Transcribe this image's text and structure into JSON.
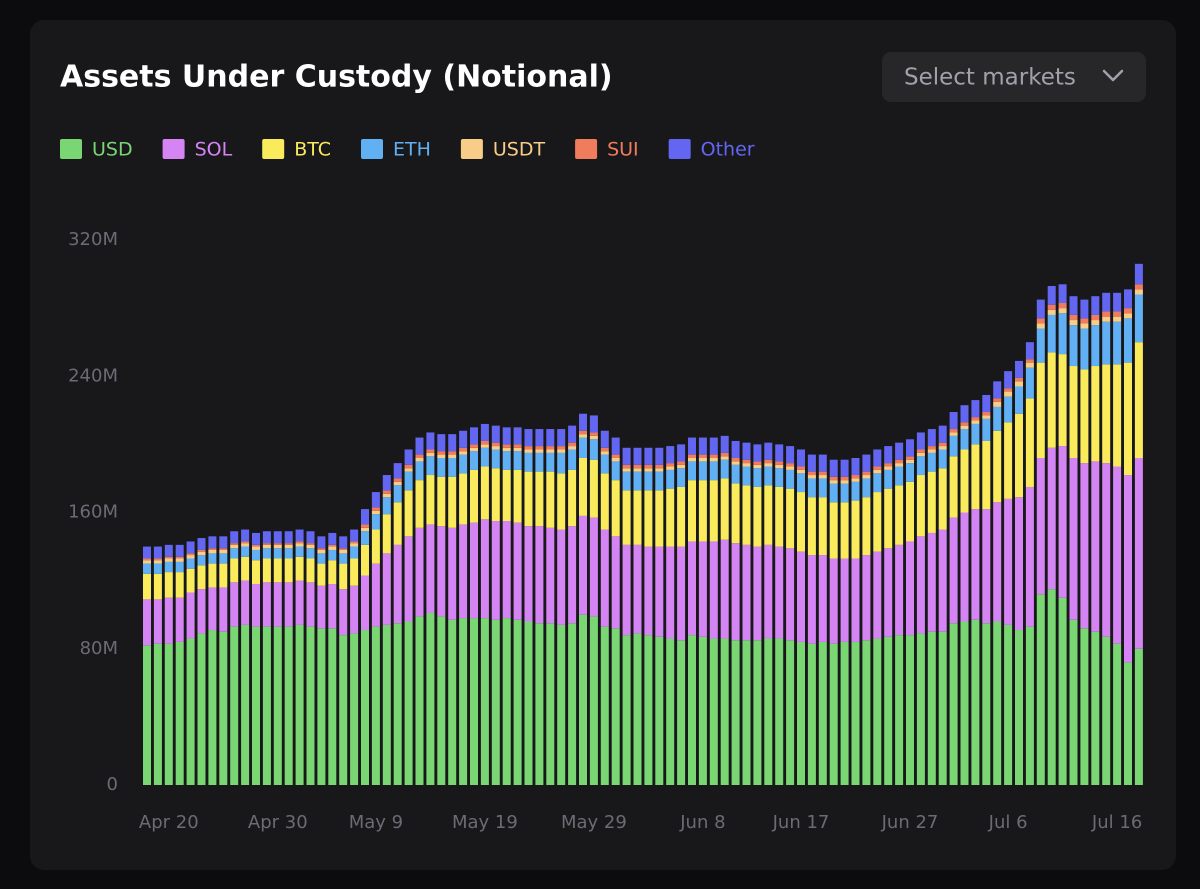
{
  "controls": {
    "select": "Select markets"
  },
  "chart_data": {
    "type": "stacked_bar",
    "title": "Assets Under Custody (Notional)",
    "categories": [
      null,
      null,
      "Apr 20",
      null,
      null,
      null,
      null,
      null,
      null,
      null,
      null,
      null,
      "Apr 30",
      null,
      null,
      null,
      null,
      null,
      null,
      null,
      null,
      "May 9",
      null,
      null,
      null,
      null,
      null,
      null,
      null,
      null,
      null,
      "May 19",
      null,
      null,
      null,
      null,
      null,
      null,
      null,
      null,
      null,
      "May 29",
      null,
      null,
      null,
      null,
      null,
      null,
      null,
      null,
      null,
      "Jun 8",
      null,
      null,
      null,
      null,
      null,
      null,
      null,
      null,
      "Jun 17",
      null,
      null,
      null,
      null,
      null,
      null,
      null,
      null,
      null,
      "Jun 27",
      null,
      null,
      null,
      null,
      null,
      null,
      null,
      null,
      "Jul 6",
      null,
      null,
      null,
      null,
      null,
      null,
      null,
      null,
      null,
      "Jul 16",
      null,
      null
    ],
    "ylim": [
      0,
      320
    ],
    "yticks": [
      {
        "value": 0,
        "label": "0"
      },
      {
        "value": 80,
        "label": "80M"
      },
      {
        "value": 160,
        "label": "160M"
      },
      {
        "value": 240,
        "label": "240M"
      },
      {
        "value": 320,
        "label": "320M"
      }
    ],
    "grid": false,
    "series": [
      {
        "name": "USD",
        "color": "#79d673",
        "values": [
          82,
          83,
          83,
          84,
          86,
          89,
          91,
          90,
          93,
          94,
          93,
          93,
          93,
          93,
          94,
          93,
          92,
          92,
          88,
          89,
          91,
          93,
          94,
          95,
          96,
          99,
          101,
          99,
          97,
          98,
          98,
          98,
          97,
          98,
          97,
          96,
          95,
          95,
          94,
          95,
          100,
          99,
          93,
          92,
          88,
          89,
          88,
          87,
          86,
          85,
          88,
          87,
          86,
          86,
          85,
          85,
          85,
          86,
          86,
          85,
          84,
          83,
          84,
          83,
          84,
          84,
          85,
          86,
          87,
          88,
          88,
          89,
          90,
          90,
          95,
          96,
          97,
          95,
          96,
          94,
          91,
          93,
          112,
          115,
          110,
          97,
          92,
          90,
          87,
          83,
          72,
          80
        ]
      },
      {
        "name": "SOL",
        "color": "#d584f4",
        "values": [
          27,
          26,
          27,
          26,
          27,
          26,
          25,
          26,
          26,
          26,
          25,
          26,
          26,
          26,
          26,
          26,
          25,
          26,
          27,
          28,
          32,
          37,
          42,
          46,
          50,
          52,
          52,
          53,
          54,
          55,
          56,
          58,
          58,
          57,
          57,
          56,
          57,
          56,
          56,
          57,
          58,
          58,
          57,
          54,
          53,
          52,
          52,
          53,
          54,
          55,
          55,
          56,
          57,
          58,
          57,
          56,
          55,
          55,
          54,
          54,
          53,
          52,
          51,
          50,
          49,
          49,
          50,
          51,
          52,
          53,
          55,
          57,
          58,
          60,
          62,
          64,
          65,
          67,
          70,
          74,
          78,
          82,
          80,
          83,
          89,
          95,
          97,
          100,
          102,
          104,
          110,
          112
        ]
      },
      {
        "name": "BTC",
        "color": "#faeb5c",
        "values": [
          15,
          15,
          15,
          15,
          14,
          14,
          14,
          14,
          14,
          14,
          14,
          14,
          14,
          14,
          14,
          14,
          13,
          14,
          15,
          16,
          18,
          20,
          23,
          25,
          27,
          28,
          29,
          29,
          30,
          30,
          31,
          31,
          31,
          30,
          31,
          32,
          32,
          33,
          33,
          33,
          34,
          34,
          33,
          33,
          32,
          32,
          33,
          33,
          34,
          35,
          36,
          36,
          36,
          36,
          35,
          35,
          35,
          35,
          35,
          35,
          35,
          34,
          34,
          33,
          33,
          34,
          34,
          35,
          35,
          35,
          35,
          36,
          36,
          36,
          36,
          37,
          38,
          40,
          42,
          45,
          49,
          52,
          56,
          56,
          54,
          54,
          55,
          56,
          58,
          60,
          66,
          68
        ]
      },
      {
        "name": "ETH",
        "color": "#62b0f4",
        "values": [
          6,
          6,
          6,
          6,
          6,
          6,
          6,
          6,
          6,
          6,
          6,
          6,
          6,
          6,
          6,
          6,
          6,
          6,
          6,
          7,
          8,
          9,
          10,
          10,
          11,
          11,
          11,
          11,
          11,
          11,
          11,
          11,
          11,
          11,
          11,
          11,
          11,
          11,
          12,
          12,
          12,
          12,
          11,
          11,
          11,
          11,
          11,
          11,
          11,
          11,
          11,
          11,
          11,
          11,
          11,
          11,
          11,
          11,
          11,
          11,
          11,
          11,
          11,
          11,
          11,
          11,
          11,
          11,
          11,
          11,
          11,
          11,
          11,
          11,
          12,
          12,
          12,
          13,
          14,
          15,
          16,
          18,
          20,
          22,
          24,
          24,
          24,
          24,
          25,
          25,
          26,
          28
        ]
      },
      {
        "name": "USDT",
        "color": "#f8cd88",
        "values": [
          2,
          2,
          2,
          2,
          2,
          2,
          2,
          2,
          2,
          2,
          2,
          2,
          2,
          2,
          2,
          2,
          2,
          2,
          2,
          2,
          2,
          2,
          2,
          2,
          2,
          2,
          2,
          2,
          2,
          2,
          2,
          2,
          2,
          2,
          2,
          2,
          2,
          2,
          2,
          2,
          2,
          2,
          2,
          2,
          2,
          2,
          2,
          2,
          2,
          2,
          2,
          2,
          2,
          2,
          2,
          2,
          2,
          2,
          2,
          2,
          2,
          2,
          2,
          2,
          2,
          2,
          2,
          2,
          2,
          2,
          2,
          2,
          2,
          2,
          2,
          2,
          2,
          2,
          3,
          3,
          3,
          3,
          3,
          3,
          3,
          3,
          3,
          3,
          3,
          3,
          3,
          3
        ]
      },
      {
        "name": "SUI",
        "color": "#ee7c5d",
        "values": [
          1,
          1,
          1,
          1,
          1,
          1,
          1,
          1,
          1,
          1,
          1,
          1,
          1,
          1,
          1,
          1,
          1,
          1,
          1,
          1,
          2,
          2,
          2,
          2,
          2,
          2,
          2,
          2,
          2,
          2,
          2,
          2,
          2,
          2,
          2,
          2,
          2,
          2,
          2,
          2,
          2,
          2,
          2,
          2,
          2,
          2,
          2,
          2,
          2,
          2,
          2,
          2,
          2,
          2,
          2,
          2,
          2,
          2,
          2,
          2,
          2,
          2,
          2,
          2,
          2,
          2,
          2,
          2,
          2,
          2,
          2,
          2,
          2,
          2,
          2,
          2,
          2,
          2,
          2,
          2,
          2,
          2,
          3,
          3,
          3,
          3,
          3,
          3,
          3,
          3,
          3,
          3
        ]
      },
      {
        "name": "Other",
        "color": "#6366f1",
        "values": [
          7,
          7,
          7,
          7,
          7,
          7,
          7,
          7,
          7,
          7,
          7,
          7,
          7,
          7,
          7,
          7,
          7,
          7,
          7,
          7,
          9,
          9,
          9,
          9,
          9,
          10,
          10,
          10,
          10,
          10,
          10,
          10,
          10,
          10,
          10,
          10,
          10,
          10,
          10,
          10,
          10,
          10,
          10,
          10,
          10,
          10,
          10,
          10,
          10,
          10,
          10,
          10,
          10,
          10,
          10,
          10,
          10,
          10,
          10,
          10,
          10,
          10,
          10,
          10,
          10,
          10,
          10,
          10,
          10,
          10,
          10,
          10,
          10,
          10,
          10,
          10,
          10,
          10,
          10,
          10,
          10,
          10,
          11,
          11,
          11,
          11,
          11,
          11,
          11,
          11,
          11,
          12
        ]
      }
    ]
  }
}
